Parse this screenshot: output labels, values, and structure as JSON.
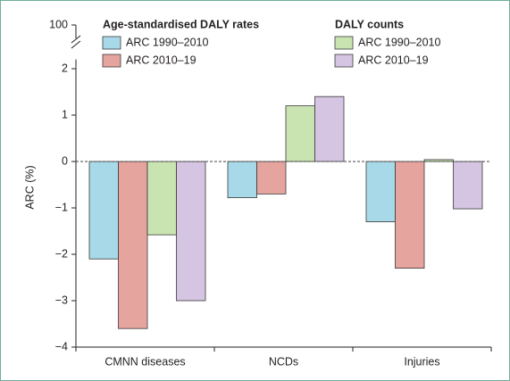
{
  "chart_data": {
    "type": "bar",
    "y_label": "ARC (%)",
    "categories": [
      "CMNN diseases",
      "NCDs",
      "Injuries"
    ],
    "series_groups": [
      {
        "name": "Age-standardised DALY rates",
        "series": [
          {
            "name": "ARC 1990–2010",
            "color": "#a8d9e9",
            "values": [
              -2.1,
              -0.78,
              -1.3
            ]
          },
          {
            "name": "ARC 2010–19",
            "color": "#e6a49e",
            "values": [
              -3.6,
              -0.7,
              -2.3
            ]
          }
        ]
      },
      {
        "name": "DALY counts",
        "series": [
          {
            "name": "ARC 1990–2010",
            "color": "#c9e4b1",
            "values": [
              -1.58,
              1.2,
              0.04
            ]
          },
          {
            "name": "ARC 2010–19",
            "color": "#d5c4e2",
            "values": [
              -3.0,
              1.4,
              -1.02
            ]
          }
        ]
      }
    ],
    "ylim": [
      -4,
      2.2
    ],
    "yticks": [
      {
        "value": -4,
        "label": "−4"
      },
      {
        "value": -3,
        "label": "−3"
      },
      {
        "value": -2,
        "label": "−2"
      },
      {
        "value": -1,
        "label": "−1"
      },
      0,
      1,
      2
    ],
    "yticks_above_break": [
      100
    ],
    "zero_line": "dashed"
  }
}
